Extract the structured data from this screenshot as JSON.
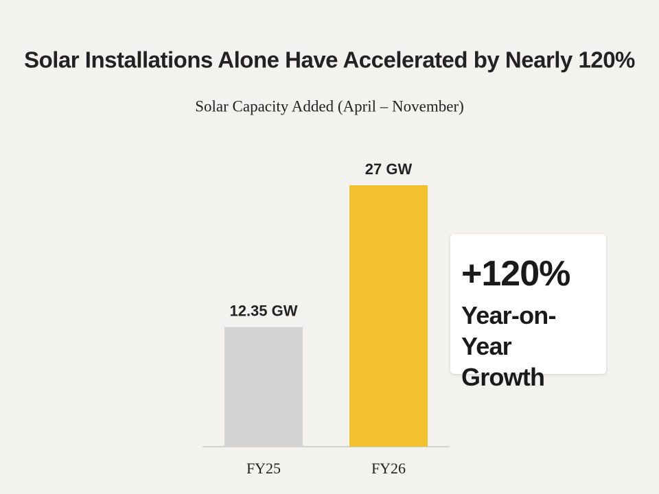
{
  "chart_data": {
    "type": "bar",
    "title": "Solar Installations Alone Have Accelerated by Nearly 120%",
    "subtitle": "Solar Capacity Added (April – November)",
    "categories": [
      "FY25",
      "FY26"
    ],
    "values": [
      12.35,
      27
    ],
    "value_labels": [
      "12.35 GW",
      "27 GW"
    ],
    "colors": [
      "#d3d3d3",
      "#f2c12e"
    ],
    "annotations": [
      "+120%",
      "Year-on-Year Growth"
    ]
  }
}
